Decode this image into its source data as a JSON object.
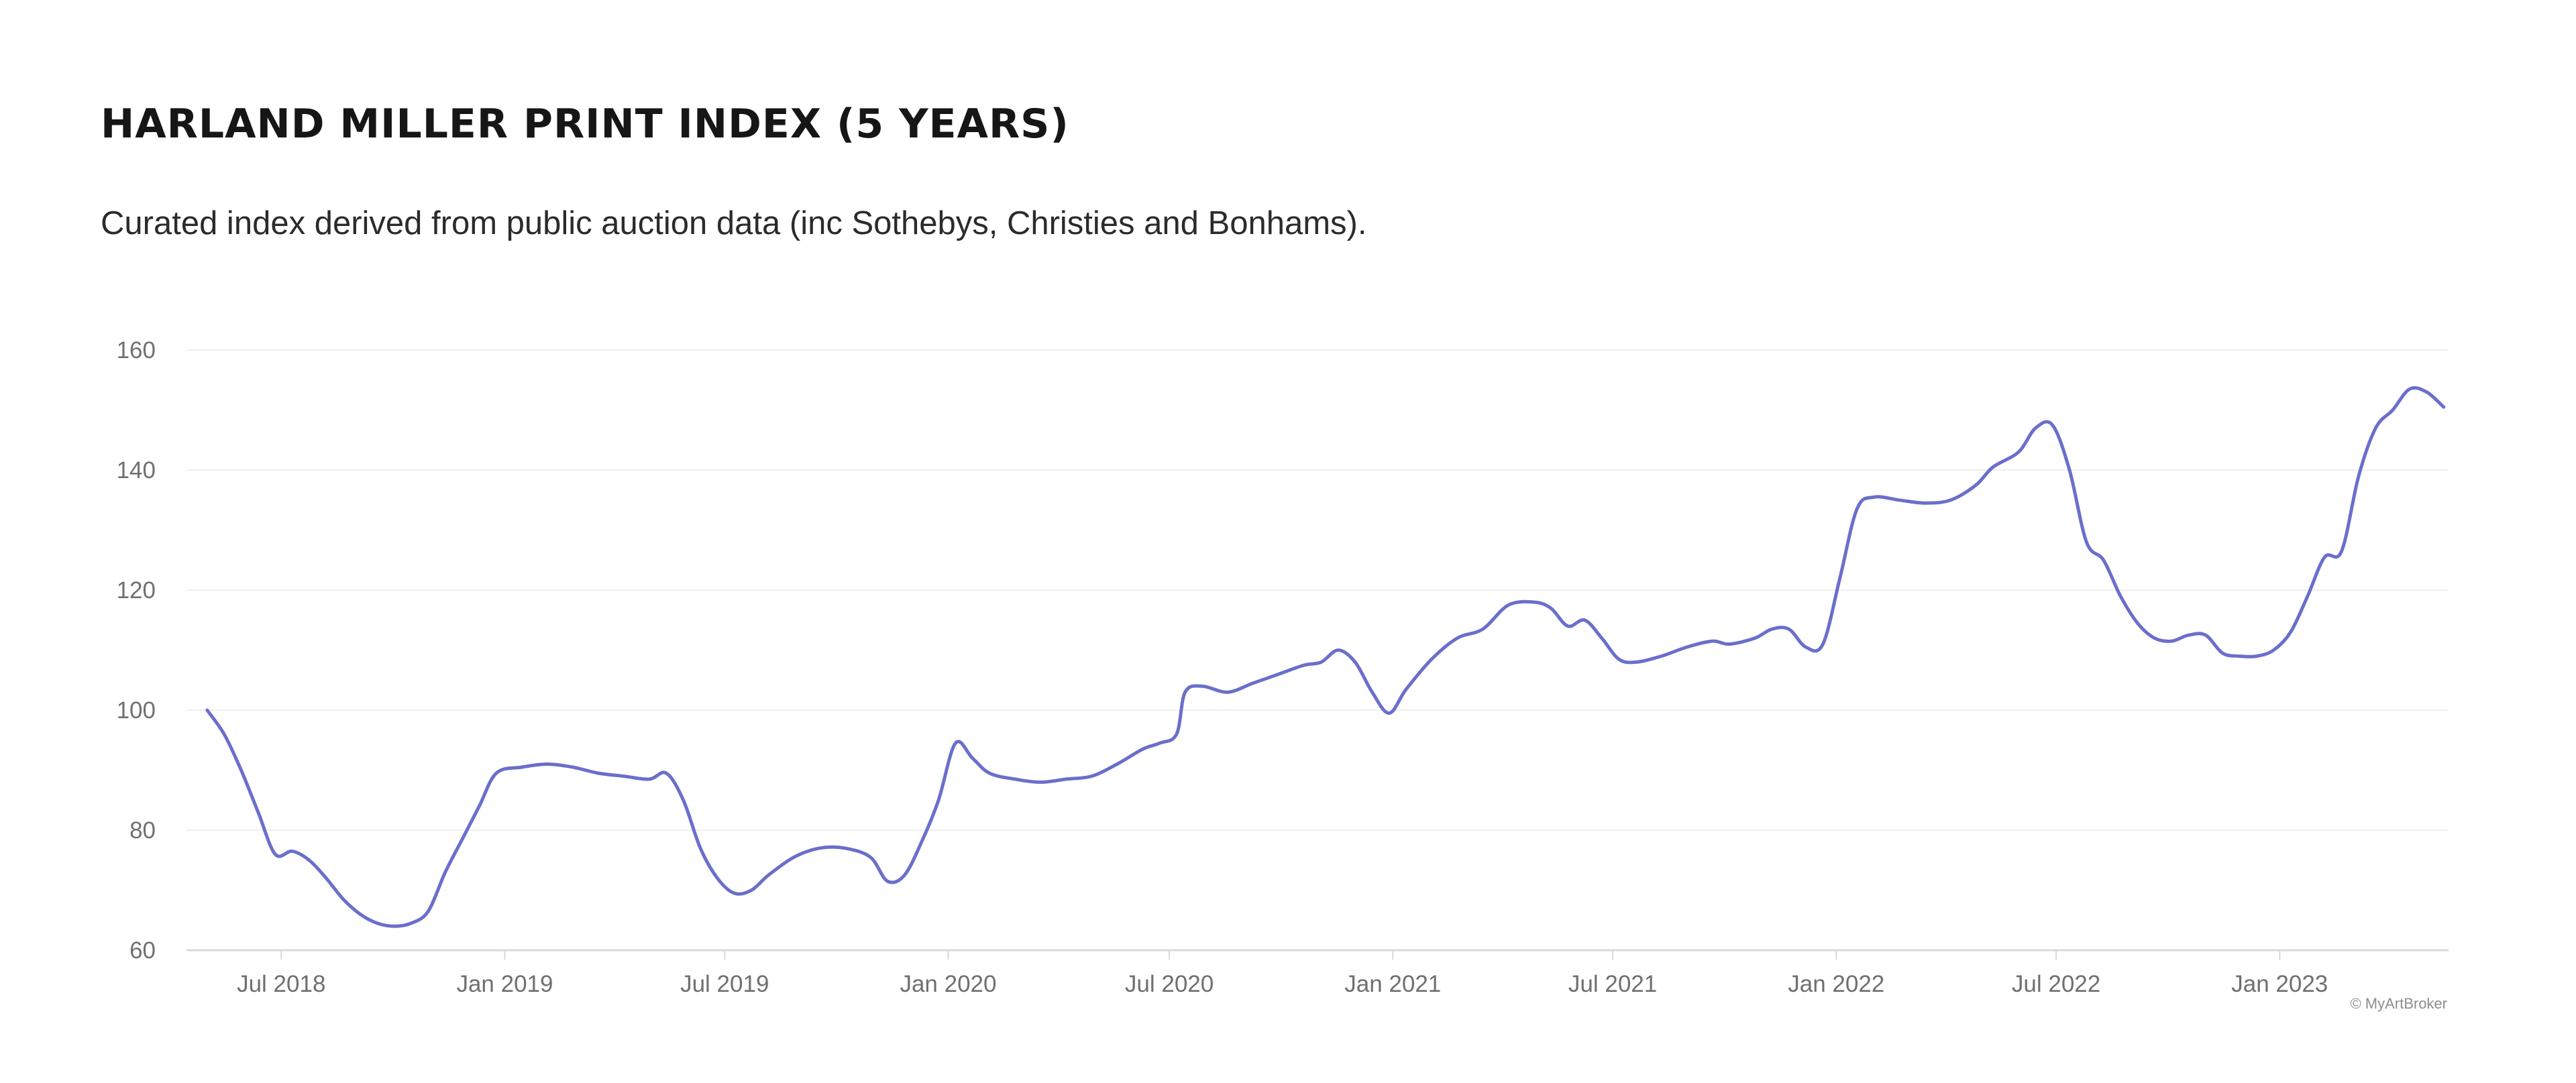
{
  "header": {
    "title": "HARLAND MILLER PRINT INDEX (5 YEARS)",
    "subtitle": "Curated index derived from public auction data (inc Sothebys, Christies and Bonhams)."
  },
  "credit": "© MyArtBroker",
  "colors": {
    "line": "#6a6fcb",
    "grid": "#efefef",
    "axis": "#d9d9d9",
    "tick_text": "#6f6f6f"
  },
  "chart_data": {
    "type": "line",
    "title": "HARLAND MILLER PRINT INDEX (5 YEARS)",
    "subtitle": "Curated index derived from public auction data (inc Sothebys, Christies and Bonhams).",
    "xlabel": "",
    "ylabel": "",
    "ylim": [
      60,
      160
    ],
    "xlim": [
      "2018-04-14",
      "2023-05-20"
    ],
    "yticks": [
      60,
      80,
      100,
      120,
      140,
      160
    ],
    "xticks": [
      {
        "date": "2018-07-01",
        "label": "Jul 2018"
      },
      {
        "date": "2019-01-01",
        "label": "Jan 2019"
      },
      {
        "date": "2019-07-01",
        "label": "Jul 2019"
      },
      {
        "date": "2020-01-01",
        "label": "Jan 2020"
      },
      {
        "date": "2020-07-01",
        "label": "Jul 2020"
      },
      {
        "date": "2021-01-01",
        "label": "Jan 2021"
      },
      {
        "date": "2021-07-01",
        "label": "Jul 2021"
      },
      {
        "date": "2022-01-01",
        "label": "Jan 2022"
      },
      {
        "date": "2022-07-01",
        "label": "Jul 2022"
      },
      {
        "date": "2023-01-01",
        "label": "Jan 2023"
      }
    ],
    "grid": true,
    "legend": "none",
    "series": [
      {
        "points": [
          [
            "2018-05-01",
            100
          ],
          [
            "2018-05-15",
            96
          ],
          [
            "2018-05-29",
            90
          ],
          [
            "2018-06-12",
            83
          ],
          [
            "2018-06-26",
            76
          ],
          [
            "2018-07-10",
            76.5
          ],
          [
            "2018-07-24",
            75
          ],
          [
            "2018-08-07",
            72
          ],
          [
            "2018-08-21",
            68.5
          ],
          [
            "2018-09-04",
            66
          ],
          [
            "2018-09-18",
            64.5
          ],
          [
            "2018-10-02",
            64
          ],
          [
            "2018-10-16",
            64.5
          ],
          [
            "2018-10-30",
            66.5
          ],
          [
            "2018-11-13",
            73
          ],
          [
            "2018-11-27",
            78.5
          ],
          [
            "2018-12-11",
            84
          ],
          [
            "2018-12-25",
            89.5
          ],
          [
            "2019-01-15",
            90.5
          ],
          [
            "2019-02-05",
            91
          ],
          [
            "2019-02-26",
            90.5
          ],
          [
            "2019-03-19",
            89.5
          ],
          [
            "2019-04-09",
            89
          ],
          [
            "2019-04-30",
            88.5
          ],
          [
            "2019-05-14",
            89.5
          ],
          [
            "2019-05-28",
            85
          ],
          [
            "2019-06-11",
            77
          ],
          [
            "2019-06-25",
            72
          ],
          [
            "2019-07-09",
            69.5
          ],
          [
            "2019-07-23",
            70
          ],
          [
            "2019-08-06",
            72.5
          ],
          [
            "2019-08-27",
            75.5
          ],
          [
            "2019-09-17",
            77
          ],
          [
            "2019-10-08",
            77
          ],
          [
            "2019-10-29",
            75.5
          ],
          [
            "2019-11-12",
            71.5
          ],
          [
            "2019-11-26",
            72.5
          ],
          [
            "2019-12-10",
            78
          ],
          [
            "2019-12-24",
            85
          ],
          [
            "2020-01-07",
            94.5
          ],
          [
            "2020-01-21",
            92
          ],
          [
            "2020-02-04",
            89.5
          ],
          [
            "2020-02-25",
            88.5
          ],
          [
            "2020-03-17",
            88
          ],
          [
            "2020-04-07",
            88.5
          ],
          [
            "2020-04-28",
            89
          ],
          [
            "2020-05-19",
            91
          ],
          [
            "2020-06-09",
            93.5
          ],
          [
            "2020-06-23",
            94.5
          ],
          [
            "2020-07-07",
            96
          ],
          [
            "2020-07-14",
            103
          ],
          [
            "2020-07-28",
            104
          ],
          [
            "2020-08-18",
            103
          ],
          [
            "2020-09-08",
            104.5
          ],
          [
            "2020-09-29",
            106
          ],
          [
            "2020-10-20",
            107.5
          ],
          [
            "2020-11-03",
            108
          ],
          [
            "2020-11-17",
            110
          ],
          [
            "2020-12-01",
            108
          ],
          [
            "2020-12-15",
            103
          ],
          [
            "2020-12-29",
            99.5
          ],
          [
            "2021-01-12",
            103.5
          ],
          [
            "2021-02-02",
            108.5
          ],
          [
            "2021-02-23",
            112
          ],
          [
            "2021-03-16",
            113.5
          ],
          [
            "2021-04-06",
            117.5
          ],
          [
            "2021-04-27",
            118
          ],
          [
            "2021-05-11",
            117
          ],
          [
            "2021-05-25",
            114
          ],
          [
            "2021-06-08",
            115
          ],
          [
            "2021-06-22",
            112
          ],
          [
            "2021-07-06",
            108.5
          ],
          [
            "2021-07-20",
            108
          ],
          [
            "2021-08-10",
            109
          ],
          [
            "2021-08-31",
            110.5
          ],
          [
            "2021-09-21",
            111.5
          ],
          [
            "2021-10-05",
            111
          ],
          [
            "2021-10-26",
            112
          ],
          [
            "2021-11-09",
            113.5
          ],
          [
            "2021-11-23",
            113.5
          ],
          [
            "2021-12-07",
            110.5
          ],
          [
            "2021-12-21",
            111
          ],
          [
            "2022-01-04",
            122
          ],
          [
            "2022-01-18",
            133.5
          ],
          [
            "2022-02-01",
            135.5
          ],
          [
            "2022-02-22",
            135
          ],
          [
            "2022-03-15",
            134.5
          ],
          [
            "2022-04-05",
            135
          ],
          [
            "2022-04-26",
            137.5
          ],
          [
            "2022-05-10",
            140.5
          ],
          [
            "2022-05-31",
            143
          ],
          [
            "2022-06-14",
            147
          ],
          [
            "2022-06-28",
            147.5
          ],
          [
            "2022-07-12",
            140
          ],
          [
            "2022-07-26",
            128
          ],
          [
            "2022-08-09",
            125
          ],
          [
            "2022-08-23",
            119
          ],
          [
            "2022-09-06",
            114.5
          ],
          [
            "2022-09-20",
            112
          ],
          [
            "2022-10-04",
            111.5
          ],
          [
            "2022-10-18",
            112.5
          ],
          [
            "2022-11-01",
            112.5
          ],
          [
            "2022-11-15",
            109.5
          ],
          [
            "2022-11-29",
            109
          ],
          [
            "2022-12-13",
            109
          ],
          [
            "2022-12-27",
            110
          ],
          [
            "2023-01-10",
            113
          ],
          [
            "2023-01-24",
            119
          ],
          [
            "2023-02-07",
            125.5
          ],
          [
            "2023-02-21",
            126.5
          ],
          [
            "2023-03-07",
            139
          ],
          [
            "2023-03-21",
            147
          ],
          [
            "2023-04-04",
            150
          ],
          [
            "2023-04-18",
            153.5
          ],
          [
            "2023-05-02",
            153
          ],
          [
            "2023-05-16",
            150.5
          ]
        ]
      }
    ]
  }
}
